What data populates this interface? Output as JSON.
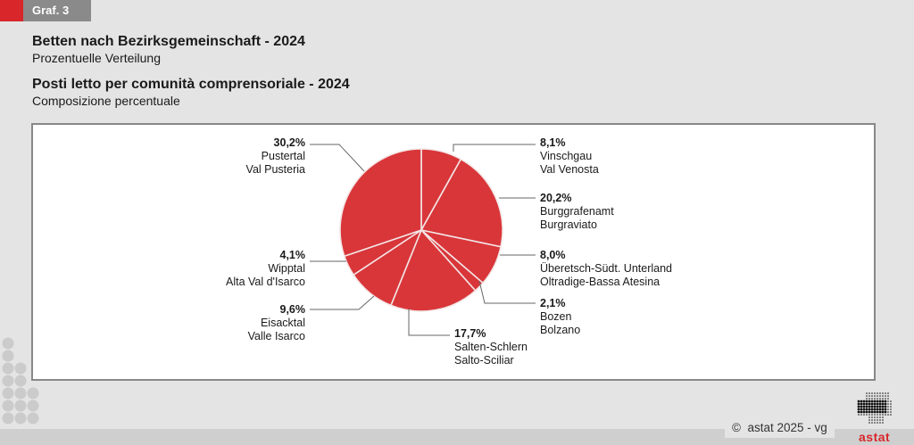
{
  "header": {
    "badge_label": "Graf. 3",
    "title_de": "Betten nach Bezirksgemeinschaft - 2024",
    "subtitle_de": "Prozentuelle Verteilung",
    "title_it": "Posti letto per comunità comprensoriale - 2024",
    "subtitle_it": "Composizione percentuale"
  },
  "footer": {
    "copyright_symbol": "©",
    "copyright_text": "astat 2025 - vg",
    "logo_text": "astat"
  },
  "colors": {
    "accent_red": "#d8262a",
    "slice_fill": "#d9363a",
    "badge_gray": "#8a8a8a",
    "background": "#e4e4e4"
  },
  "chart_data": {
    "type": "pie",
    "title": "Betten nach Bezirksgemeinschaft - 2024 / Posti letto per comunità comprensoriale - 2024",
    "unit": "%",
    "start": "12 o'clock, clockwise",
    "slices": [
      {
        "value": 8.1,
        "pct_label": "8,1%",
        "name_de": "Vinschgau",
        "name_it": "Val Venosta"
      },
      {
        "value": 20.2,
        "pct_label": "20,2%",
        "name_de": "Burggrafenamt",
        "name_it": "Burgraviato"
      },
      {
        "value": 8.0,
        "pct_label": "8,0%",
        "name_de": "Überetsch-Südt. Unterland",
        "name_it": "Oltradige-Bassa Atesina"
      },
      {
        "value": 2.1,
        "pct_label": "2,1%",
        "name_de": "Bozen",
        "name_it": "Bolzano"
      },
      {
        "value": 17.7,
        "pct_label": "17,7%",
        "name_de": "Salten-Schlern",
        "name_it": "Salto-Sciliar"
      },
      {
        "value": 9.6,
        "pct_label": "9,6%",
        "name_de": "Eisacktal",
        "name_it": "Valle Isarco"
      },
      {
        "value": 4.1,
        "pct_label": "4,1%",
        "name_de": "Wipptal",
        "name_it": "Alta Val d'Isarco"
      },
      {
        "value": 30.2,
        "pct_label": "30,2%",
        "name_de": "Pustertal",
        "name_it": "Val Pusteria"
      }
    ]
  }
}
